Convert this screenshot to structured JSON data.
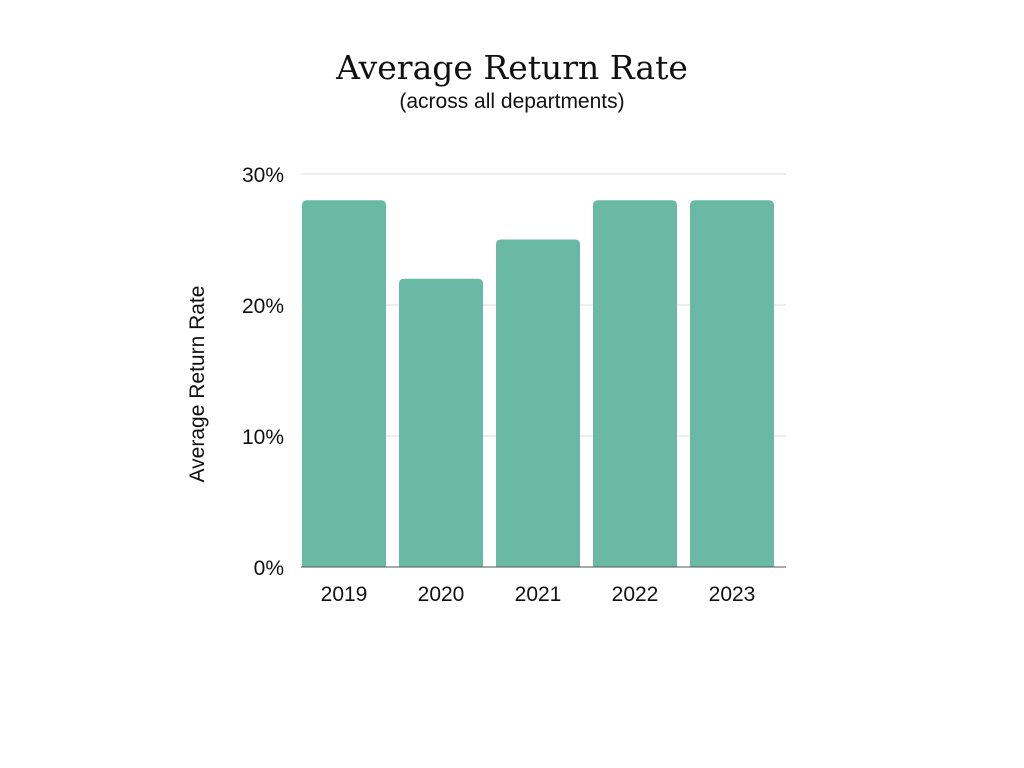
{
  "title": "Average Return Rate",
  "subtitle": "(across all departments)",
  "colors": {
    "bar": "#69b9a4",
    "grid": "#dddddd",
    "baseline": "#555555",
    "text": "#111111"
  },
  "chart_data": {
    "type": "bar",
    "title": "Average Return Rate",
    "subtitle": "(across all departments)",
    "ylabel": "Average Return Rate",
    "xlabel": "",
    "categories": [
      "2019",
      "2020",
      "2021",
      "2022",
      "2023"
    ],
    "values": [
      28,
      22,
      25,
      28,
      28
    ],
    "ylim": [
      0,
      30
    ],
    "yticks": [
      0,
      10,
      20,
      30
    ],
    "ytick_labels": [
      "0%",
      "10%",
      "20%",
      "30%"
    ],
    "grid": true,
    "legend": "none"
  }
}
